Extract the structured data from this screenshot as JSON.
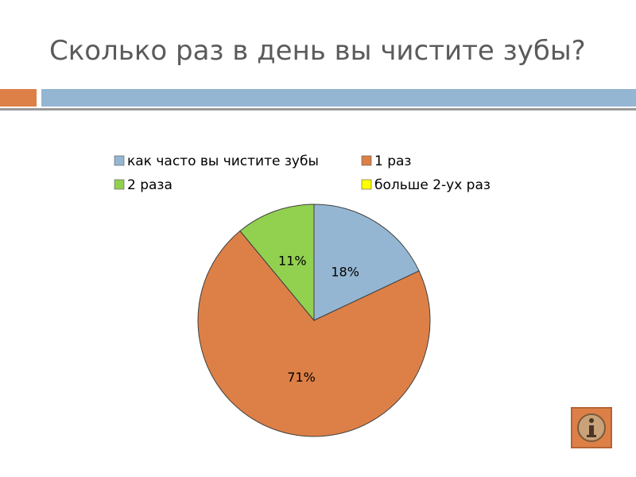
{
  "slide": {
    "title": "Сколько раз в день вы чистите зубы?"
  },
  "colors": {
    "title_text": "#5b5b5b",
    "accent_orange": "#dd8047",
    "accent_blue": "#94b6d2",
    "rule_gray": "#999999",
    "info_icon": "info-icon"
  },
  "chart_data": {
    "type": "pie",
    "title": "",
    "legend_position": "top",
    "legend": [
      {
        "label": "как часто вы чистите зубы",
        "color": "#94b6d2"
      },
      {
        "label": "1 раз",
        "color": "#dd8047"
      },
      {
        "label": "2 раза",
        "color": "#92d050"
      },
      {
        "label": "больше 2-ух раз",
        "color": "#ffff00"
      }
    ],
    "slices": [
      {
        "category": "как часто вы чистите зубы",
        "value": 18,
        "label": "18%",
        "color": "#94b6d2"
      },
      {
        "category": "1 раз",
        "value": 71,
        "label": "71%",
        "color": "#dd8047"
      },
      {
        "category": "2 раза",
        "value": 11,
        "label": "11%",
        "color": "#92d050"
      }
    ]
  }
}
